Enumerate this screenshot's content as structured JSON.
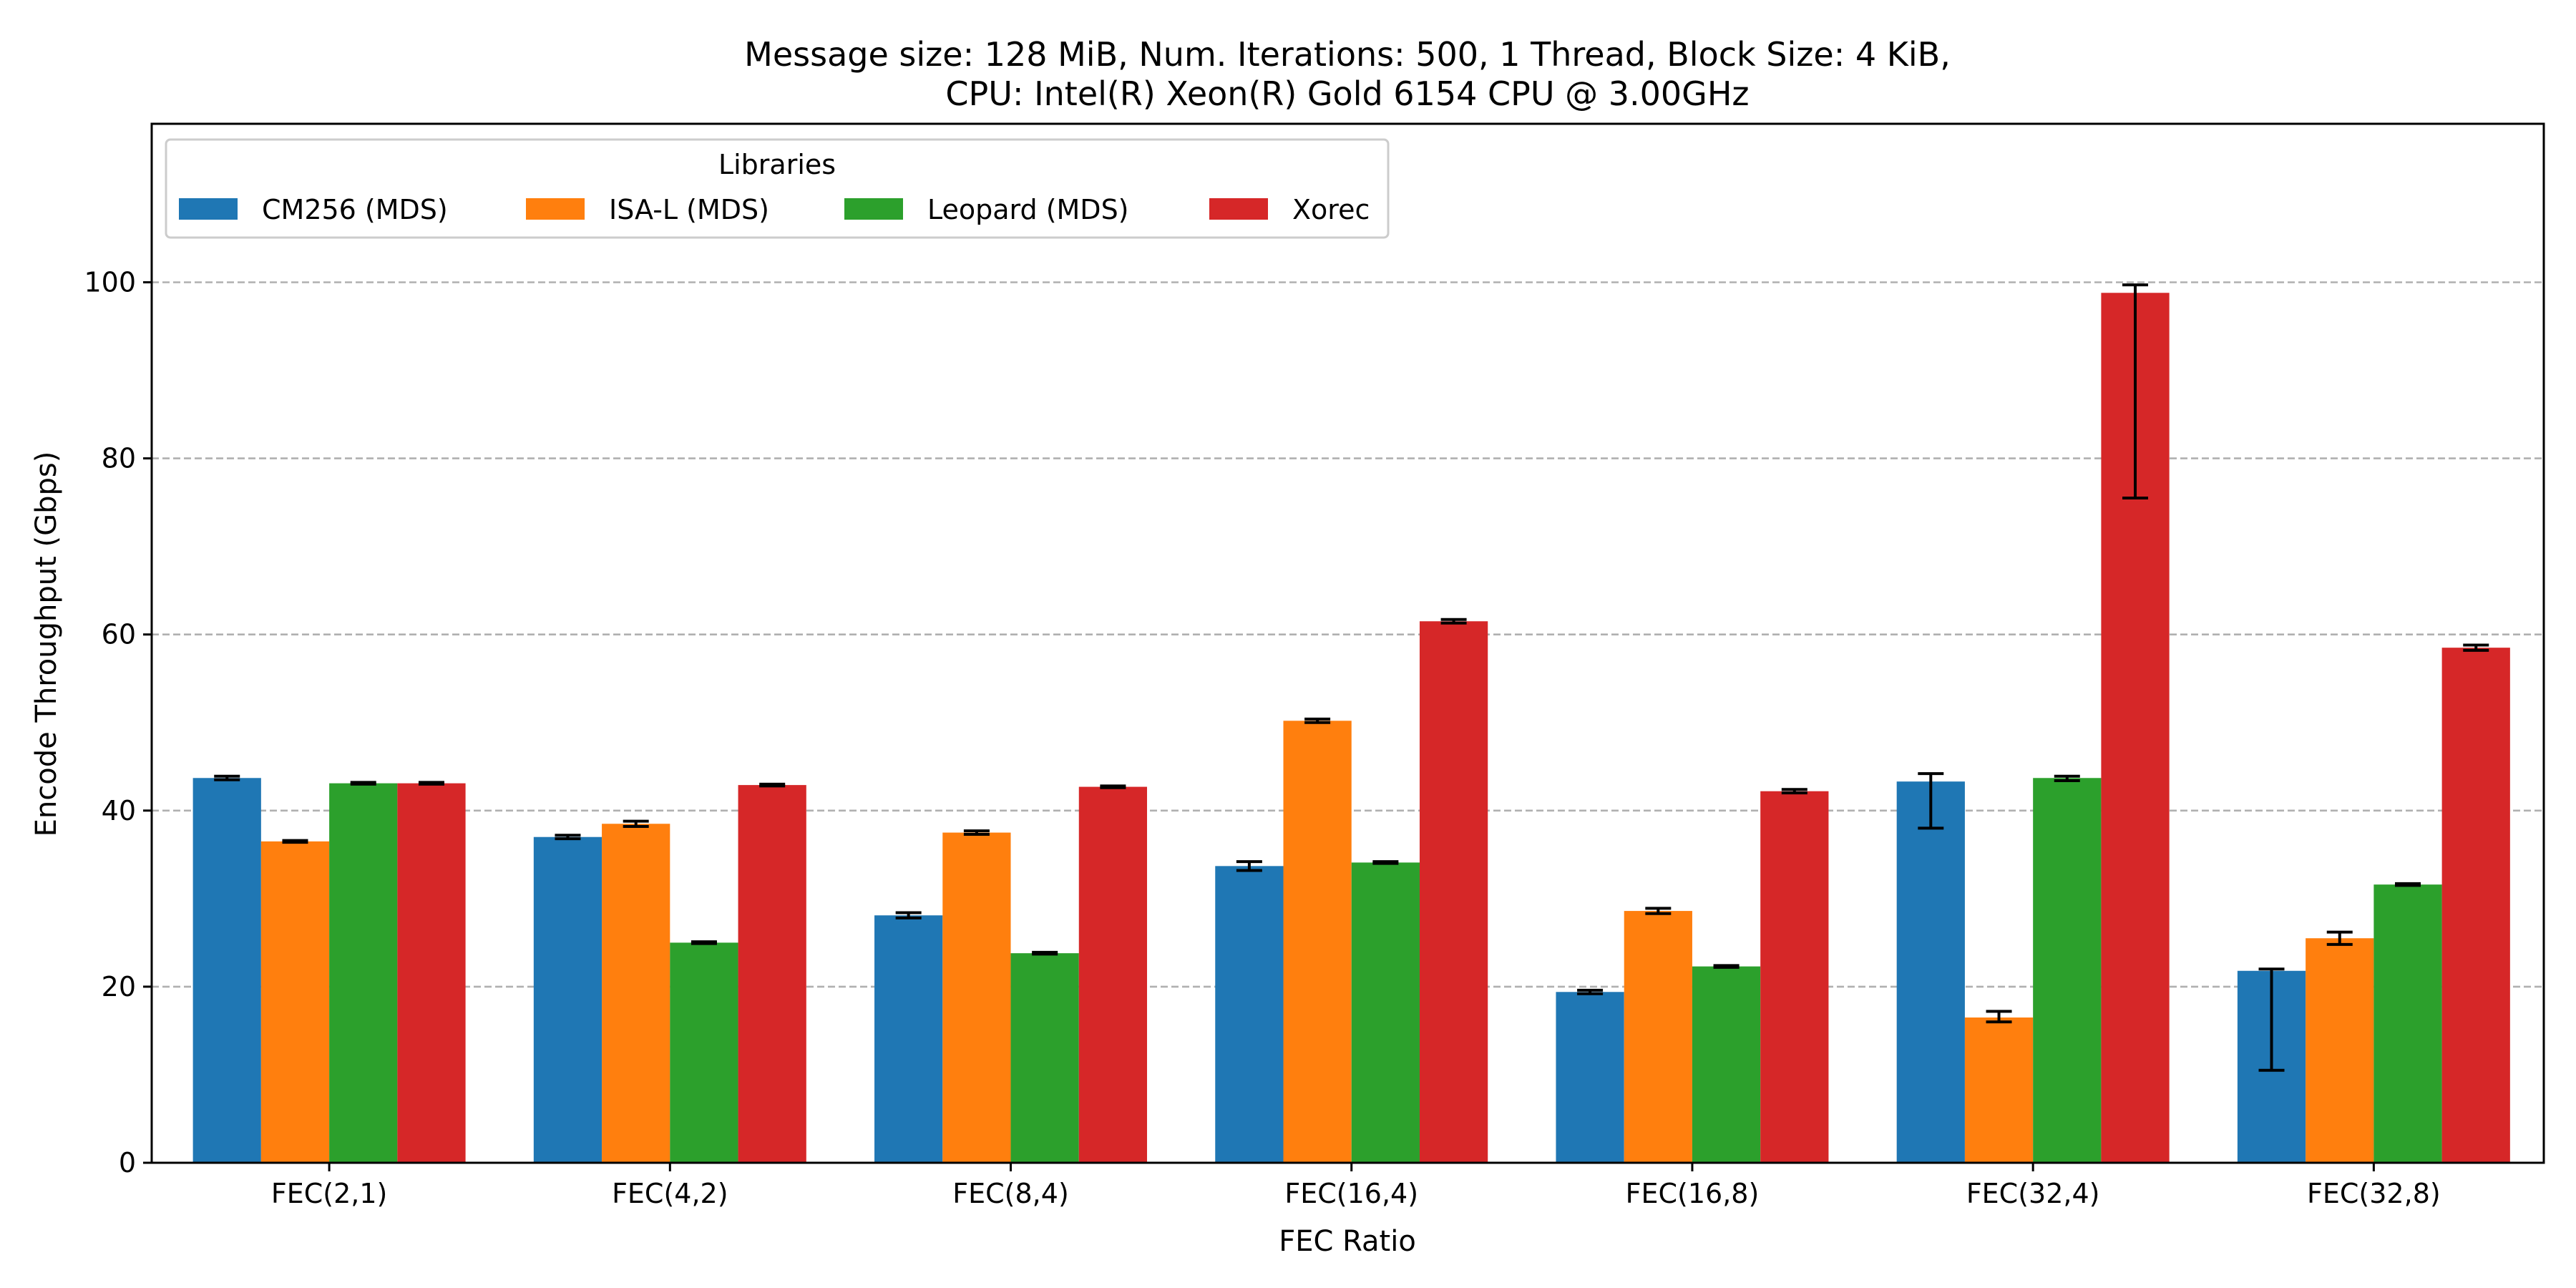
{
  "chart_data": {
    "type": "bar",
    "title": [
      "Message size: 128 MiB, Num. Iterations: 500, 1 Thread, Block Size: 4 KiB,",
      "CPU: Intel(R) Xeon(R) Gold 6154 CPU @ 3.00GHz"
    ],
    "xlabel": "FEC Ratio",
    "ylabel": "Encode Throughput (Gbps)",
    "ylim": [
      0,
      118
    ],
    "yticks": [
      0,
      20,
      40,
      60,
      80,
      100
    ],
    "grid": "y-dashed",
    "legend": {
      "title": "Libraries",
      "placement": "top-left",
      "ncol": 4
    },
    "categories": [
      "FEC(2,1)",
      "FEC(4,2)",
      "FEC(8,4)",
      "FEC(16,4)",
      "FEC(16,8)",
      "FEC(32,4)",
      "FEC(32,8)"
    ],
    "series": [
      {
        "name": "CM256 (MDS)",
        "color": "#1f77b4",
        "values": [
          43.7,
          37.0,
          28.1,
          33.7,
          19.4,
          43.3,
          21.8
        ],
        "error_low": [
          43.5,
          36.8,
          27.8,
          33.2,
          19.2,
          38.0,
          10.5
        ],
        "error_high": [
          43.9,
          37.2,
          28.4,
          34.2,
          19.6,
          44.2,
          22.0
        ]
      },
      {
        "name": "ISA-L (MDS)",
        "color": "#ff7f0e",
        "values": [
          36.5,
          38.5,
          37.5,
          50.2,
          28.6,
          16.5,
          25.5
        ],
        "error_low": [
          36.4,
          38.2,
          37.3,
          50.0,
          28.3,
          16.0,
          24.8
        ],
        "error_high": [
          36.6,
          38.8,
          37.7,
          50.4,
          28.9,
          17.2,
          26.2
        ]
      },
      {
        "name": "Leopard (MDS)",
        "color": "#2ca02c",
        "values": [
          43.1,
          25.0,
          23.8,
          34.1,
          22.3,
          43.7,
          31.6
        ],
        "error_low": [
          43.0,
          24.9,
          23.7,
          34.0,
          22.2,
          43.4,
          31.5
        ],
        "error_high": [
          43.2,
          25.1,
          23.9,
          34.2,
          22.4,
          43.9,
          31.7
        ]
      },
      {
        "name": "Xorec",
        "color": "#d62728",
        "values": [
          43.1,
          42.9,
          42.7,
          61.5,
          42.2,
          98.8,
          58.5
        ],
        "error_low": [
          43.0,
          42.8,
          42.6,
          61.3,
          42.0,
          75.5,
          58.2
        ],
        "error_high": [
          43.2,
          43.0,
          42.8,
          61.7,
          42.4,
          99.7,
          58.8
        ]
      }
    ]
  }
}
